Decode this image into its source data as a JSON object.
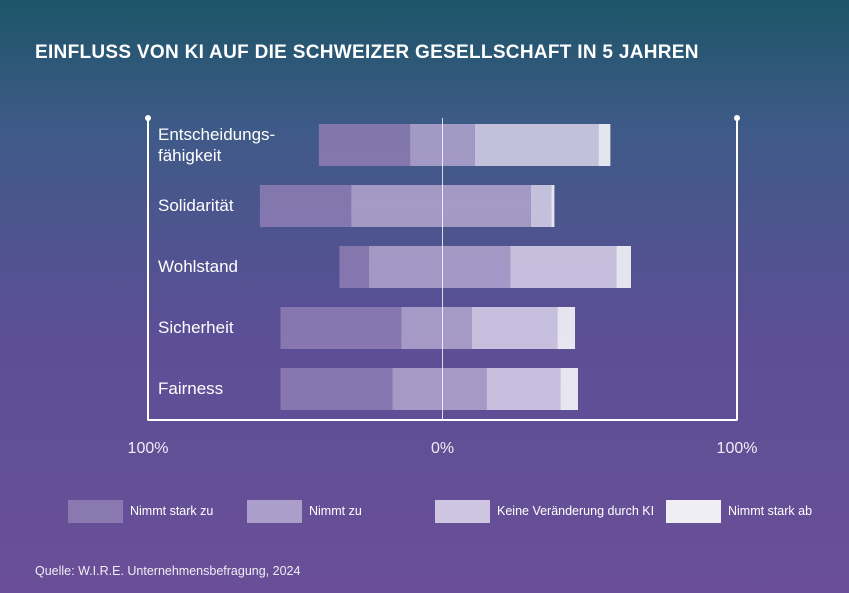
{
  "chart_data": {
    "type": "diverging_stacked_bar",
    "title": "EINFLUSS VON KI AUF DIE SCHWEIZER GESELLSCHAFT IN 5 JAHREN",
    "source": "Quelle: W.I.R.E. Unternehmensbefragung, 2024",
    "categories": [
      "Entscheidungs-fähigkeit",
      "Solidarität",
      "Wohlstand",
      "Sicherheit",
      "Fairness"
    ],
    "start": [
      -42,
      -62,
      -35,
      -55,
      -55
    ],
    "series": [
      {
        "name": "Nimmt stark zu",
        "color": "#8e7db4",
        "values": [
          31,
          31,
          10,
          41,
          38
        ]
      },
      {
        "name": "Nimmt zu",
        "color": "#b3a6cf",
        "values": [
          22,
          61,
          48,
          24,
          32
        ]
      },
      {
        "name": "Keine Veränderung durch KI",
        "color": "#d9d2ea",
        "values": [
          42,
          7,
          36,
          29,
          25
        ]
      },
      {
        "name": "Nimmt stark ab",
        "color": "#ffffff",
        "values": [
          4,
          1,
          5,
          6,
          6
        ]
      }
    ],
    "xlim": [
      -100,
      100
    ],
    "xticks": [
      {
        "value": -100,
        "label": "100%"
      },
      {
        "value": 0,
        "label": "0%"
      },
      {
        "value": 100,
        "label": "100%"
      }
    ]
  }
}
